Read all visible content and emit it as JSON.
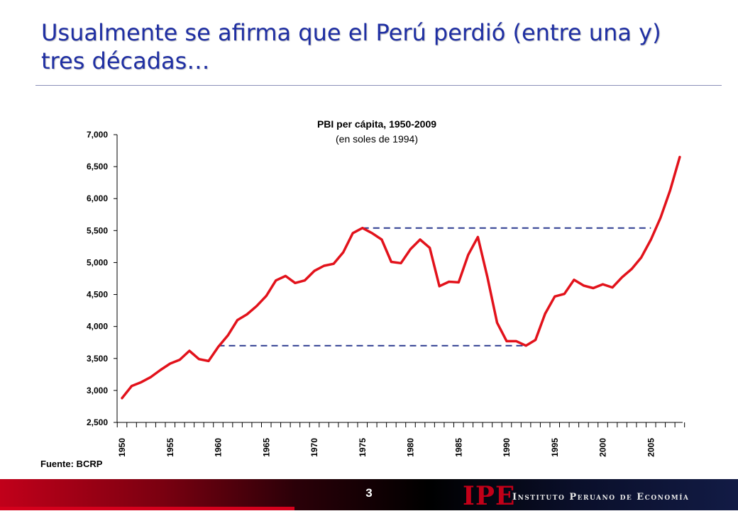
{
  "slide": {
    "title": "Usualmente se afirma que el Perú perdió (entre una y) tres décadas…",
    "source": "Fuente: BCRP",
    "page_number": "3"
  },
  "footer": {
    "logo_text": "IPE",
    "institute_name": "Instituto Peruano de Economía"
  },
  "colors": {
    "title": "#1f2fa3",
    "series_line": "#e2121b",
    "reference_lines": "#2b3a8f"
  },
  "chart_data": {
    "type": "line",
    "title": "PBI per cápita, 1950-2009",
    "subtitle": "(en soles de 1994)",
    "xlabel": "",
    "ylabel": "",
    "ylim": [
      2500,
      7000
    ],
    "yticks": [
      "7,000",
      "6,500",
      "6,000",
      "5,500",
      "5,000",
      "4,500",
      "4,000",
      "3,500",
      "3,000",
      "2,500"
    ],
    "ytick_values": [
      7000,
      6500,
      6000,
      5500,
      5000,
      4500,
      4000,
      3500,
      3000,
      2500
    ],
    "xticks": [
      "1950",
      "1955",
      "1960",
      "1965",
      "1970",
      "1975",
      "1980",
      "1985",
      "1990",
      "1995",
      "2000",
      "2005"
    ],
    "xtick_values": [
      1950,
      1955,
      1960,
      1965,
      1970,
      1975,
      1980,
      1985,
      1990,
      1995,
      2000,
      2005
    ],
    "xlim": [
      1950,
      2008
    ],
    "legend": "none",
    "grid": false,
    "series": [
      {
        "x": [
          1950,
          1951,
          1952,
          1953,
          1954,
          1955,
          1956,
          1957,
          1958,
          1959,
          1960,
          1961,
          1962,
          1963,
          1964,
          1965,
          1966,
          1967,
          1968,
          1969,
          1970,
          1971,
          1972,
          1973,
          1974,
          1975,
          1976,
          1977,
          1978,
          1979,
          1980,
          1981,
          1982,
          1983,
          1984,
          1985,
          1986,
          1987,
          1988,
          1989,
          1990,
          1991,
          1992,
          1993,
          1994,
          1995,
          1996,
          1997,
          1998,
          1999,
          2000,
          2001,
          2002,
          2003,
          2004,
          2005,
          2006,
          2007,
          2008
        ],
        "values": [
          2880,
          3070,
          3130,
          3210,
          3320,
          3420,
          3480,
          3620,
          3490,
          3460,
          3680,
          3860,
          4100,
          4190,
          4320,
          4480,
          4720,
          4790,
          4680,
          4720,
          4870,
          4950,
          4980,
          5160,
          5460,
          5540,
          5460,
          5360,
          5010,
          4990,
          5210,
          5360,
          5230,
          4630,
          4700,
          4690,
          5120,
          5400,
          4770,
          4060,
          3770,
          3770,
          3700,
          3790,
          4200,
          4470,
          4510,
          4730,
          4640,
          4600,
          4660,
          4610,
          4770,
          4900,
          5080,
          5360,
          5700,
          6130,
          6650
        ]
      }
    ],
    "reference_lines": [
      {
        "y": 3700,
        "x_start": 1960,
        "x_end": 1992
      },
      {
        "y": 5540,
        "x_start": 1975,
        "x_end": 2005
      }
    ]
  }
}
